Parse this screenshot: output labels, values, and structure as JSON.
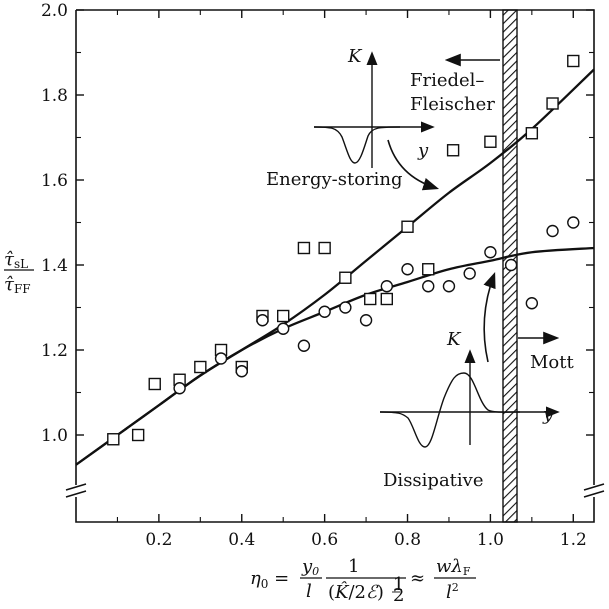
{
  "chart_data": {
    "type": "scatter",
    "xlim": [
      0.0,
      1.25
    ],
    "ylim": [
      0.9,
      2.0
    ],
    "x_axis_break_at_y": 0.9,
    "xticks": [
      0.2,
      0.4,
      0.6,
      0.8,
      1.0,
      1.2
    ],
    "xtick_labels": [
      "0.2",
      "0.4",
      "0.6",
      "0.8",
      "1.0",
      "1.2"
    ],
    "yticks": [
      1.0,
      1.2,
      1.4,
      1.6,
      1.8,
      2.0
    ],
    "ytick_labels": [
      "1.0",
      "1.2",
      "1.4",
      "1.6",
      "1.8",
      "2.0"
    ],
    "series": [
      {
        "marker": "square",
        "x": [
          0.09,
          0.15,
          0.19,
          0.25,
          0.3,
          0.35,
          0.4,
          0.45,
          0.5,
          0.55,
          0.6,
          0.65,
          0.71,
          0.75,
          0.8,
          0.85,
          0.91,
          1.0,
          1.1,
          1.15,
          1.2
        ],
        "y": [
          0.99,
          1.0,
          1.12,
          1.13,
          1.16,
          1.2,
          1.16,
          1.28,
          1.28,
          1.44,
          1.44,
          1.37,
          1.32,
          1.32,
          1.49,
          1.39,
          1.67,
          1.69,
          1.71,
          1.78,
          1.88
        ]
      },
      {
        "marker": "circle",
        "x": [
          0.25,
          0.35,
          0.4,
          0.45,
          0.5,
          0.55,
          0.6,
          0.65,
          0.7,
          0.75,
          0.8,
          0.85,
          0.9,
          0.95,
          1.0,
          1.05,
          1.1,
          1.15,
          1.2
        ],
        "y": [
          1.11,
          1.18,
          1.15,
          1.27,
          1.25,
          1.21,
          1.29,
          1.3,
          1.27,
          1.35,
          1.39,
          1.35,
          1.35,
          1.38,
          1.43,
          1.4,
          1.31,
          1.48,
          1.5
        ]
      }
    ],
    "curves": [
      {
        "x": [
          0.0,
          0.1,
          0.2,
          0.3,
          0.4,
          0.5,
          0.6,
          0.7,
          0.8,
          0.9,
          1.0,
          1.1,
          1.25
        ],
        "y": [
          0.93,
          1.0,
          1.07,
          1.14,
          1.2,
          1.26,
          1.33,
          1.41,
          1.49,
          1.57,
          1.64,
          1.72,
          1.86
        ]
      },
      {
        "x": [
          0.0,
          0.1,
          0.2,
          0.3,
          0.4,
          0.5,
          0.6,
          0.7,
          0.8,
          0.9,
          1.0,
          1.1,
          1.25
        ],
        "y": [
          0.93,
          1.0,
          1.07,
          1.14,
          1.2,
          1.25,
          1.29,
          1.33,
          1.36,
          1.39,
          1.41,
          1.43,
          1.44
        ]
      }
    ],
    "boundary_x": 1.05,
    "ylabel_top": "τ̂sL",
    "ylabel_bottom": "τ̂FF",
    "xlabel": "η0 = (y0 / l) · 1/(K̂/2ℰ)^½ ≈ wλF / l²",
    "annotations": {
      "friedel": [
        "Friedel–",
        "Fleischer"
      ],
      "energy_storing": "Energy-storing",
      "dissipative": "Dissipative",
      "mott": "Mott",
      "inset_K": "K",
      "inset_y": "y"
    }
  }
}
